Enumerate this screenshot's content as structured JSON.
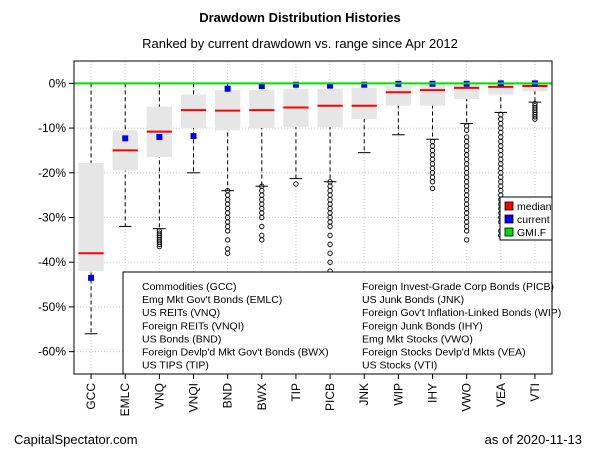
{
  "header": {
    "title": "Drawdown Distribution Histories",
    "subtitle": "Ranked by current drawdown vs. range since Apr 2012"
  },
  "footer": {
    "source": "CapitalSpectator.com",
    "date": "as of  2020-11-13"
  },
  "colors": {
    "box_fill": "#e6e6e6",
    "median": "#ff0000",
    "current": "#0000ff",
    "gmi": "#00dd00",
    "grid": "#c8c8c8"
  },
  "chart_data": {
    "type": "box",
    "ylim": [
      -65,
      5
    ],
    "y_ticks": [
      0,
      -10,
      -20,
      -30,
      -40,
      -50,
      -60
    ],
    "y_tick_labels": [
      "0%",
      "-10%",
      "-20%",
      "-30%",
      "-40%",
      "-50%",
      "-60%"
    ],
    "grid": true,
    "gmi_line": 0,
    "categories": [
      "GCC",
      "EMLC",
      "VNQ",
      "VNQI",
      "BND",
      "BWX",
      "TIP",
      "PICB",
      "JNK",
      "WIP",
      "IHY",
      "VWO",
      "VEA",
      "VTI"
    ],
    "boxes": [
      {
        "whisker_low": -56.0,
        "q1": -42.0,
        "median": -38.0,
        "q3": -17.8,
        "whisker_high": 0,
        "current": -43.5,
        "outliers": []
      },
      {
        "whisker_low": -32.0,
        "q1": -19.5,
        "median": -15.0,
        "q3": -10.5,
        "whisker_high": 0,
        "current": -12.3,
        "outliers": []
      },
      {
        "whisker_low": -32.5,
        "q1": -16.5,
        "median": -10.8,
        "q3": -5.2,
        "whisker_high": 0,
        "current": -12.0,
        "outliers": [
          -33,
          -33.5,
          -34,
          -34.5,
          -35,
          -35.5,
          -36,
          -36.5
        ]
      },
      {
        "whisker_low": -20.0,
        "q1": -10.0,
        "median": -6.0,
        "q3": -2.5,
        "whisker_high": 0,
        "current": -11.8,
        "outliers": []
      },
      {
        "whisker_low": -24.0,
        "q1": -10.5,
        "median": -6.1,
        "q3": -1.5,
        "whisker_high": 0,
        "current": -1.2,
        "outliers": [
          -24,
          -25,
          -26,
          -27,
          -28,
          -29,
          -30,
          -31,
          -32,
          -33,
          -35,
          -37,
          -38
        ]
      },
      {
        "whisker_low": -23.0,
        "q1": -10.0,
        "median": -6.0,
        "q3": -1.5,
        "whisker_high": 0,
        "current": -0.6,
        "outliers": [
          -23,
          -24,
          -25,
          -26,
          -27,
          -28,
          -29,
          -30,
          -32,
          -34,
          -35
        ]
      },
      {
        "whisker_low": -21.3,
        "q1": -9.8,
        "median": -5.4,
        "q3": -1.2,
        "whisker_high": 0,
        "current": -0.3,
        "outliers": [
          -22.5
        ]
      },
      {
        "whisker_low": -22.0,
        "q1": -9.8,
        "median": -5.0,
        "q3": -1.2,
        "whisker_high": 0,
        "current": -0.5,
        "outliers": [
          -22,
          -23,
          -24,
          -25,
          -26,
          -27,
          -28,
          -29,
          -30,
          -31,
          -32,
          -34,
          -36,
          -38,
          -40,
          -42
        ]
      },
      {
        "whisker_low": -15.5,
        "q1": -8.0,
        "median": -5.0,
        "q3": -1.0,
        "whisker_high": 0,
        "current": -0.3,
        "outliers": []
      },
      {
        "whisker_low": -11.5,
        "q1": -5.0,
        "median": -2.0,
        "q3": -0.5,
        "whisker_high": 0,
        "current": -0.1,
        "outliers": []
      },
      {
        "whisker_low": -12.5,
        "q1": -5.0,
        "median": -1.5,
        "q3": -0.3,
        "whisker_high": 0,
        "current": -0.1,
        "outliers": [
          -13,
          -14,
          -15,
          -16,
          -17,
          -18,
          -19,
          -20,
          -21,
          -22,
          -23.5
        ]
      },
      {
        "whisker_low": -9.0,
        "q1": -3.5,
        "median": -1.0,
        "q3": -0.2,
        "whisker_high": 0,
        "current": -0.1,
        "outliers": [
          -9.5,
          -10.5,
          -12,
          -13,
          -14,
          -15,
          -16,
          -17,
          -18,
          -19,
          -20,
          -21,
          -22,
          -23,
          -24,
          -25,
          -26,
          -27,
          -28,
          -29,
          -30,
          -31,
          -32,
          -33,
          -35
        ]
      },
      {
        "whisker_low": -6.5,
        "q1": -2.5,
        "median": -0.8,
        "q3": -0.1,
        "whisker_high": 0,
        "current": 0.0,
        "outliers": [
          -7,
          -8,
          -9,
          -10,
          -11,
          -12,
          -13,
          -14,
          -15,
          -16,
          -17,
          -18,
          -19,
          -20,
          -21,
          -22,
          -23,
          -24,
          -25,
          -26,
          -27,
          -28,
          -29,
          -30,
          -31,
          -33,
          -34
        ]
      },
      {
        "whisker_low": -4.2,
        "q1": -1.8,
        "median": -0.6,
        "q3": -0.1,
        "whisker_high": 0,
        "current": 0.0,
        "outliers": [
          -4.5,
          -5,
          -5.5,
          -6,
          -6.5,
          -7,
          -7.5,
          -8
        ]
      }
    ],
    "legend": {
      "placement": "right",
      "items": [
        {
          "label": "median",
          "color": "#ff0000"
        },
        {
          "label": "current",
          "color": "#0000ff"
        },
        {
          "label": "GMI.F",
          "color": "#00dd00"
        }
      ]
    },
    "descriptions_left": [
      "Commodities (GCC)",
      "Emg Mkt Gov't Bonds (EMLC)",
      "US REITs (VNQ)",
      "Foreign REITs (VNQI)",
      "US Bonds (BND)",
      "Foreign Devlp'd Mkt Gov't Bonds (BWX)",
      "US TIPS (TIP)"
    ],
    "descriptions_right": [
      "Foreign Invest-Grade Corp Bonds (PICB)",
      "US Junk Bonds (JNK)",
      "Foreign Gov't Inflation-Linked Bonds (WIP)",
      "Foreign Junk Bonds (IHY)",
      "Emg Mkt Stocks (VWO)",
      "Foreign Stocks Devlp'd Mkts (VEA)",
      "US Stocks (VTI)"
    ]
  }
}
